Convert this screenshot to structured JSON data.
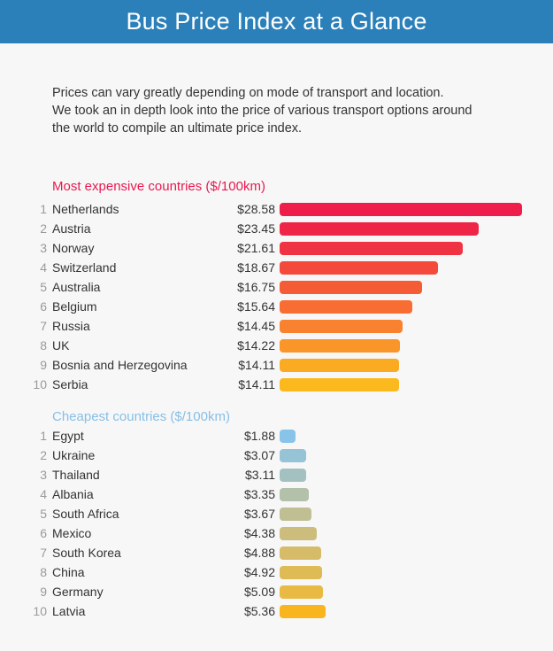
{
  "header": {
    "title": "Bus Price Index at a Glance"
  },
  "intro": {
    "lines": [
      "Prices can vary greatly depending on mode of transport and location.",
      "We took an in depth look into the price of various transport options around",
      "the world to compile an ultimate price index."
    ]
  },
  "chart_data": [
    {
      "type": "bar",
      "orientation": "horizontal",
      "title": "Most expensive countries ($/100km)",
      "title_color": "#e8194f",
      "ranks": [
        "1",
        "2",
        "3",
        "4",
        "5",
        "6",
        "7",
        "8",
        "9",
        "10"
      ],
      "categories": [
        "Netherlands",
        "Austria",
        "Norway",
        "Switzerland",
        "Australia",
        "Belgium",
        "Russia",
        "UK",
        "Bosnia and Herzegovina",
        "Serbia"
      ],
      "values": [
        28.58,
        23.45,
        21.61,
        18.67,
        16.75,
        15.64,
        14.45,
        14.22,
        14.11,
        14.11
      ],
      "labels": [
        "$28.58",
        "$23.45",
        "$21.61",
        "$18.67",
        "$16.75",
        "$15.64",
        "$14.45",
        "$14.22",
        "$14.11",
        "$14.11"
      ],
      "colors": [
        "#ee1d4b",
        "#ef2547",
        "#f03343",
        "#f34a3c",
        "#f55c36",
        "#f86d31",
        "#f98230",
        "#fa952a",
        "#fbab22",
        "#fbb91d"
      ]
    },
    {
      "type": "bar",
      "orientation": "horizontal",
      "title": "Cheapest countries ($/100km)",
      "title_color": "#86bfe6",
      "ranks": [
        "1",
        "2",
        "3",
        "4",
        "5",
        "6",
        "7",
        "8",
        "9",
        "10"
      ],
      "categories": [
        "Egypt",
        "Ukraine",
        "Thailand",
        "Albania",
        "South Africa",
        "Mexico",
        "South Korea",
        "China",
        "Germany",
        "Latvia"
      ],
      "values": [
        1.88,
        3.07,
        3.11,
        3.35,
        3.67,
        4.38,
        4.88,
        4.92,
        5.09,
        5.36
      ],
      "labels": [
        "$1.88",
        "$3.07",
        "$3.11",
        "$3.35",
        "$3.67",
        "$4.38",
        "$4.88",
        "$4.92",
        "$5.09",
        "$5.36"
      ],
      "colors": [
        "#88c3ea",
        "#96c3d6",
        "#a4c1c1",
        "#b3c0aa",
        "#c0bf93",
        "#cdbd7c",
        "#d6bc68",
        "#dfbb56",
        "#e8ba44",
        "#f8b51e"
      ]
    }
  ]
}
